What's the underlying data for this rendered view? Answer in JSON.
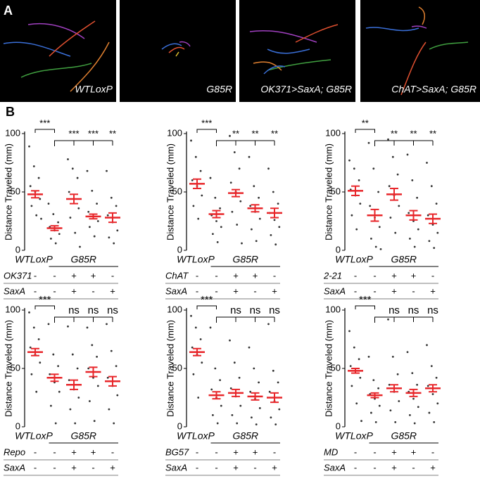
{
  "panels": {
    "a": {
      "label": "A",
      "images": [
        "WTLoxP",
        "G85R",
        "OK371>SaxA; G85R",
        "ChAT>SaxA; G85R"
      ]
    },
    "b": {
      "label": "B"
    }
  },
  "chart_data": [
    {
      "type": "dot",
      "ylabel": "Distance Traveled (mm)",
      "ylim": [
        0,
        100
      ],
      "yticks": [
        0,
        50,
        100
      ],
      "color": "#e8262a",
      "group_labels": [
        "WTLoxP",
        "G85R"
      ],
      "conditions": [
        {
          "name": "OK371",
          "marks": [
            "-",
            "-",
            "+",
            "+",
            "-"
          ]
        },
        {
          "name": "SaxA",
          "marks": [
            "-",
            "-",
            "+",
            "-",
            "+"
          ]
        }
      ],
      "groups": [
        {
          "points": [
            89,
            72,
            62,
            55,
            50,
            44,
            38,
            30,
            27
          ],
          "mean": 48,
          "sem": 3
        },
        {
          "points": [
            40,
            31,
            24,
            20,
            17,
            14,
            10,
            6
          ],
          "mean": 19,
          "sem": 2
        },
        {
          "points": [
            78,
            70,
            62,
            50,
            44,
            36,
            28,
            15,
            3
          ],
          "mean": 44,
          "sem": 4
        },
        {
          "points": [
            68,
            51,
            40,
            33,
            29,
            25,
            20,
            12
          ],
          "mean": 29,
          "sem": 2
        },
        {
          "points": [
            68,
            45,
            38,
            30,
            24,
            17,
            11,
            6
          ],
          "mean": 28,
          "sem": 4
        }
      ],
      "sig_first": "***",
      "sig_rest": [
        "***",
        "***",
        "**"
      ]
    },
    {
      "type": "dot",
      "ylabel": "Distance Traveled (mm)",
      "ylim": [
        0,
        100
      ],
      "yticks": [
        0,
        50,
        100
      ],
      "color": "#e8262a",
      "group_labels": [
        "WTLoxP",
        "G85R"
      ],
      "conditions": [
        {
          "name": "ChAT",
          "marks": [
            "-",
            "-",
            "+",
            "+",
            "-"
          ]
        },
        {
          "name": "SaxA",
          "marks": [
            "-",
            "-",
            "+",
            "-",
            "+"
          ]
        }
      ],
      "groups": [
        {
          "points": [
            94,
            80,
            68,
            60,
            55,
            47,
            38,
            27
          ],
          "mean": 57,
          "sem": 4
        },
        {
          "points": [
            62,
            45,
            36,
            30,
            25,
            20,
            14,
            7
          ],
          "mean": 31,
          "sem": 3
        },
        {
          "points": [
            98,
            84,
            70,
            58,
            50,
            42,
            33,
            22,
            6
          ],
          "mean": 49,
          "sem": 3
        },
        {
          "points": [
            80,
            55,
            45,
            38,
            33,
            27,
            18,
            8
          ],
          "mean": 36,
          "sem": 3
        },
        {
          "points": [
            70,
            50,
            40,
            32,
            26,
            20,
            13,
            5
          ],
          "mean": 32,
          "sem": 4
        }
      ],
      "sig_first": "***",
      "sig_rest": [
        "**",
        "**",
        "**"
      ]
    },
    {
      "type": "dot",
      "ylabel": "Distance Traveled (mm)",
      "ylim": [
        0,
        100
      ],
      "yticks": [
        0,
        50,
        100
      ],
      "color": "#e8262a",
      "group_labels": [
        "WTLoxP",
        "G85R"
      ],
      "conditions": [
        {
          "name": "2-21",
          "marks": [
            "-",
            "-",
            "+",
            "+",
            "-"
          ]
        },
        {
          "name": "SaxA",
          "marks": [
            "-",
            "-",
            "+",
            "-",
            "+"
          ]
        }
      ],
      "groups": [
        {
          "points": [
            77,
            70,
            60,
            52,
            47,
            40,
            30,
            18
          ],
          "mean": 51,
          "sem": 4
        },
        {
          "points": [
            92,
            70,
            50,
            38,
            28,
            20,
            10,
            3,
            1
          ],
          "mean": 30,
          "sem": 5
        },
        {
          "points": [
            95,
            80,
            65,
            55,
            47,
            38,
            28,
            15
          ],
          "mean": 48,
          "sem": 5
        },
        {
          "points": [
            82,
            60,
            45,
            32,
            25,
            18,
            10,
            3
          ],
          "mean": 30,
          "sem": 4
        },
        {
          "points": [
            75,
            55,
            40,
            30,
            22,
            15,
            8,
            2
          ],
          "mean": 27,
          "sem": 4
        }
      ],
      "sig_first": "**",
      "sig_rest": [
        "**",
        "**",
        "**"
      ]
    },
    {
      "type": "dot",
      "ylabel": "Distance Traveled (mm)",
      "ylim": [
        0,
        100
      ],
      "yticks": [
        0,
        50,
        100
      ],
      "color": "#e8262a",
      "group_labels": [
        "WTLoxP",
        "G85R"
      ],
      "conditions": [
        {
          "name": "Repo",
          "marks": [
            "-",
            "-",
            "+",
            "+",
            "-"
          ]
        },
        {
          "name": "SaxA",
          "marks": [
            "-",
            "-",
            "+",
            "-",
            "+"
          ]
        }
      ],
      "groups": [
        {
          "points": [
            98,
            85,
            75,
            68,
            62,
            55,
            45,
            30
          ],
          "mean": 64,
          "sem": 3
        },
        {
          "points": [
            88,
            62,
            52,
            45,
            38,
            30,
            18,
            3
          ],
          "mean": 42,
          "sem": 3
        },
        {
          "points": [
            86,
            62,
            50,
            40,
            32,
            25,
            15,
            3
          ],
          "mean": 36,
          "sem": 4
        },
        {
          "points": [
            85,
            70,
            60,
            50,
            42,
            35,
            22,
            5
          ],
          "mean": 47,
          "sem": 4
        },
        {
          "points": [
            88,
            65,
            52,
            42,
            35,
            27,
            15,
            3
          ],
          "mean": 39,
          "sem": 4
        }
      ],
      "sig_first": "***",
      "sig_rest": [
        "ns",
        "ns",
        "ns"
      ]
    },
    {
      "type": "dot",
      "ylabel": "Distance Traveled (mm)",
      "ylim": [
        0,
        100
      ],
      "yticks": [
        0,
        50,
        100
      ],
      "color": "#e8262a",
      "group_labels": [
        "WTLoxP",
        "G85R"
      ],
      "conditions": [
        {
          "name": "BG57",
          "marks": [
            "-",
            "-",
            "+",
            "+",
            "-"
          ]
        },
        {
          "name": "SaxA",
          "marks": [
            "-",
            "-",
            "+",
            "-",
            "+"
          ]
        }
      ],
      "groups": [
        {
          "points": [
            95,
            85,
            75,
            68,
            62,
            55,
            45,
            25
          ],
          "mean": 64,
          "sem": 3
        },
        {
          "points": [
            85,
            50,
            40,
            32,
            25,
            18,
            10,
            3
          ],
          "mean": 27,
          "sem": 3
        },
        {
          "points": [
            74,
            55,
            42,
            33,
            26,
            18,
            10,
            3
          ],
          "mean": 29,
          "sem": 3
        },
        {
          "points": [
            68,
            50,
            38,
            30,
            24,
            16,
            8,
            2
          ],
          "mean": 26,
          "sem": 3
        },
        {
          "points": [
            88,
            48,
            38,
            30,
            22,
            15,
            8,
            2
          ],
          "mean": 25,
          "sem": 4
        }
      ],
      "sig_first": "***",
      "sig_rest": [
        "ns",
        "ns",
        "ns"
      ]
    },
    {
      "type": "dot",
      "ylabel": "Distance Traveled (mm)",
      "ylim": [
        0,
        100
      ],
      "yticks": [
        0,
        50,
        100
      ],
      "color": "#e8262a",
      "group_labels": [
        "WTLoxP",
        "G85R"
      ],
      "conditions": [
        {
          "name": "MD",
          "marks": [
            "-",
            "-",
            "+",
            "+",
            "-"
          ]
        },
        {
          "name": "SaxA",
          "marks": [
            "-",
            "-",
            "+",
            "-",
            "+"
          ]
        }
      ],
      "groups": [
        {
          "points": [
            82,
            68,
            58,
            52,
            48,
            42,
            35,
            20,
            5
          ],
          "mean": 48,
          "sem": 2
        },
        {
          "points": [
            60,
            40,
            33,
            28,
            24,
            18,
            12,
            4
          ],
          "mean": 27,
          "sem": 2
        },
        {
          "points": [
            92,
            60,
            45,
            36,
            30,
            22,
            14,
            4
          ],
          "mean": 33,
          "sem": 3
        },
        {
          "points": [
            64,
            46,
            36,
            30,
            24,
            17,
            10,
            3
          ],
          "mean": 29,
          "sem": 3
        },
        {
          "points": [
            70,
            52,
            42,
            35,
            28,
            20,
            12,
            4
          ],
          "mean": 33,
          "sem": 3
        }
      ],
      "sig_first": "***",
      "sig_rest": [
        "ns",
        "ns",
        "ns"
      ]
    }
  ]
}
